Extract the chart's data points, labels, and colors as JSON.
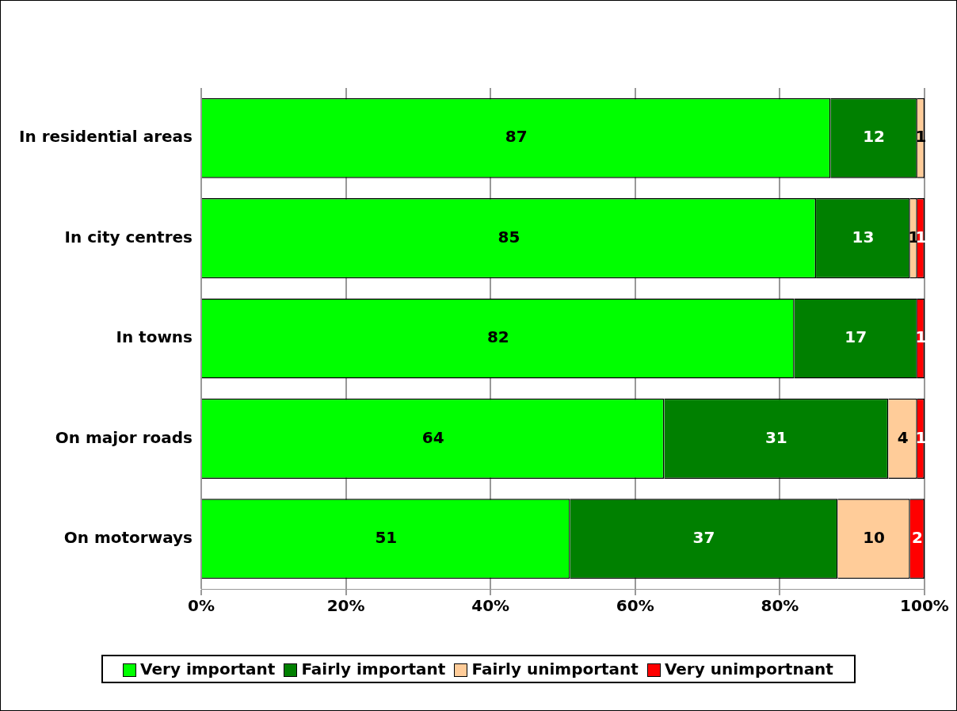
{
  "chart_data": {
    "type": "bar",
    "orientation": "horizontal",
    "stacked": true,
    "categories": [
      "In residential areas",
      "In city centres",
      "In towns",
      "On major roads",
      "On motorways"
    ],
    "series": [
      {
        "name": "Very important",
        "color": "#00ff00",
        "values": [
          87,
          85,
          82,
          64,
          51
        ]
      },
      {
        "name": "Fairly important",
        "color": "#008000",
        "values": [
          12,
          13,
          17,
          31,
          37
        ]
      },
      {
        "name": "Fairly unimportant",
        "color": "#ffcc99",
        "values": [
          1,
          1,
          null,
          4,
          10
        ]
      },
      {
        "name": "Very unimportnant",
        "color": "#ff0000",
        "values": [
          null,
          1,
          1,
          1,
          2
        ]
      }
    ],
    "xlim": [
      0,
      100
    ],
    "xticks": [
      {
        "value": 0,
        "label": "0%"
      },
      {
        "value": 20,
        "label": "20%"
      },
      {
        "value": 40,
        "label": "40%"
      },
      {
        "value": 60,
        "label": "60%"
      },
      {
        "value": 80,
        "label": "80%"
      },
      {
        "value": 100,
        "label": "100%"
      }
    ],
    "grid": "x",
    "legend": "bottom",
    "data_labels": true
  }
}
